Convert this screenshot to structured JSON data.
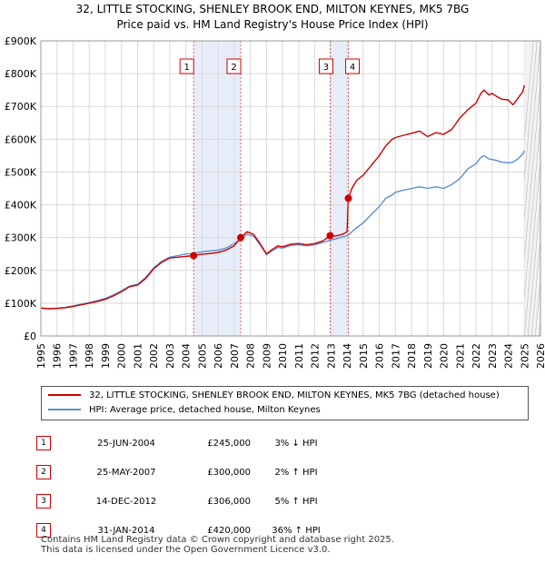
{
  "title_line1": "32, LITTLE STOCKING, SHENLEY BROOK END, MILTON KEYNES, MK5 7BG",
  "title_line2": "Price paid vs. HM Land Registry's House Price Index (HPI)",
  "chart_data": {
    "type": "line",
    "xlim": [
      1995,
      2026
    ],
    "ylim": [
      0,
      900000
    ],
    "y_ticks": [
      0,
      100000,
      200000,
      300000,
      400000,
      500000,
      600000,
      700000,
      800000,
      900000
    ],
    "y_tick_labels": [
      "£0",
      "£100K",
      "£200K",
      "£300K",
      "£400K",
      "£500K",
      "£600K",
      "£700K",
      "£800K",
      "£900K"
    ],
    "x_ticks": [
      1995,
      1996,
      1997,
      1998,
      1999,
      2000,
      2001,
      2002,
      2003,
      2004,
      2005,
      2006,
      2007,
      2008,
      2009,
      2010,
      2011,
      2012,
      2013,
      2014,
      2015,
      2016,
      2017,
      2018,
      2019,
      2020,
      2021,
      2022,
      2023,
      2024,
      2025,
      2026
    ],
    "x_tick_labels": [
      "1995",
      "1996",
      "1997",
      "1998",
      "1999",
      "2000",
      "2001",
      "2002",
      "2003",
      "2004",
      "2005",
      "2006",
      "2007",
      "2008",
      "2009",
      "2010",
      "2011",
      "2012",
      "2013",
      "2014",
      "2015",
      "2016",
      "2017",
      "2018",
      "2019",
      "2020",
      "2021",
      "2022",
      "2023",
      "2024",
      "2025",
      "2026"
    ],
    "grid": true,
    "forecast_from": 2025.0,
    "shaded_ranges": [
      [
        2004.48,
        2007.4
      ],
      [
        2012.95,
        2014.08
      ]
    ],
    "series": [
      {
        "name": "32, LITTLE STOCKING, SHENLEY BROOK END, MILTON KEYNES, MK5 7BG (detached house)",
        "color": "#cc0000",
        "x": [
          1995.0,
          1995.5,
          1996.0,
          1996.5,
          1997.0,
          1997.5,
          1998.0,
          1998.5,
          1999.0,
          1999.5,
          2000.0,
          2000.5,
          2001.0,
          2001.5,
          2002.0,
          2002.5,
          2003.0,
          2003.5,
          2004.0,
          2004.48,
          2004.8,
          2005.2,
          2005.6,
          2006.0,
          2006.5,
          2007.0,
          2007.4,
          2007.8,
          2008.2,
          2008.6,
          2009.0,
          2009.3,
          2009.7,
          2010.0,
          2010.5,
          2011.0,
          2011.5,
          2012.0,
          2012.5,
          2012.95,
          2013.3,
          2013.7,
          2014.0,
          2014.08,
          2014.3,
          2014.6,
          2015.0,
          2015.5,
          2016.0,
          2016.4,
          2016.8,
          2017.0,
          2017.5,
          2018.0,
          2018.5,
          2019.0,
          2019.5,
          2020.0,
          2020.5,
          2021.0,
          2021.5,
          2022.0,
          2022.3,
          2022.5,
          2022.8,
          2023.0,
          2023.3,
          2023.6,
          2024.0,
          2024.3,
          2024.6,
          2024.9,
          2025.0
        ],
        "y": [
          85000,
          83000,
          84000,
          86000,
          90000,
          95000,
          100000,
          105000,
          112000,
          122000,
          135000,
          150000,
          155000,
          175000,
          205000,
          225000,
          238000,
          240000,
          243000,
          245000,
          248000,
          250000,
          252000,
          255000,
          262000,
          275000,
          300000,
          318000,
          310000,
          282000,
          250000,
          262000,
          275000,
          272000,
          280000,
          282000,
          278000,
          282000,
          290000,
          306000,
          305000,
          310000,
          318000,
          420000,
          450000,
          475000,
          490000,
          520000,
          550000,
          580000,
          600000,
          605000,
          612000,
          618000,
          625000,
          608000,
          620000,
          615000,
          630000,
          665000,
          690000,
          710000,
          740000,
          750000,
          735000,
          740000,
          730000,
          722000,
          720000,
          705000,
          725000,
          745000,
          765000
        ]
      },
      {
        "name": "HPI: Average price, detached house, Milton Keynes",
        "color": "#5b8fd1",
        "x": [
          1995.0,
          1995.5,
          1996.0,
          1996.5,
          1997.0,
          1997.5,
          1998.0,
          1998.5,
          1999.0,
          1999.5,
          2000.0,
          2000.5,
          2001.0,
          2001.5,
          2002.0,
          2002.5,
          2003.0,
          2003.5,
          2004.0,
          2004.48,
          2004.8,
          2005.2,
          2005.6,
          2006.0,
          2006.5,
          2007.0,
          2007.4,
          2007.8,
          2008.2,
          2008.6,
          2009.0,
          2009.3,
          2009.7,
          2010.0,
          2010.5,
          2011.0,
          2011.5,
          2012.0,
          2012.5,
          2012.95,
          2013.3,
          2013.7,
          2014.0,
          2014.08,
          2014.3,
          2014.6,
          2015.0,
          2015.5,
          2016.0,
          2016.4,
          2016.8,
          2017.0,
          2017.5,
          2018.0,
          2018.5,
          2019.0,
          2019.5,
          2020.0,
          2020.5,
          2021.0,
          2021.5,
          2022.0,
          2022.3,
          2022.5,
          2022.8,
          2023.0,
          2023.3,
          2023.6,
          2024.0,
          2024.3,
          2024.6,
          2024.9,
          2025.0
        ],
        "y": [
          85000,
          84000,
          85000,
          87000,
          92000,
          97000,
          102000,
          108000,
          115000,
          125000,
          138000,
          152000,
          158000,
          178000,
          208000,
          228000,
          240000,
          245000,
          250000,
          252000,
          255000,
          258000,
          260000,
          262000,
          268000,
          282000,
          295000,
          310000,
          305000,
          278000,
          248000,
          258000,
          270000,
          268000,
          276000,
          278000,
          275000,
          278000,
          285000,
          292000,
          296000,
          302000,
          306000,
          308000,
          318000,
          330000,
          345000,
          370000,
          395000,
          420000,
          430000,
          438000,
          445000,
          450000,
          455000,
          450000,
          455000,
          450000,
          462000,
          480000,
          510000,
          525000,
          545000,
          550000,
          540000,
          538000,
          535000,
          530000,
          528000,
          530000,
          540000,
          555000,
          565000
        ]
      }
    ],
    "markers": [
      {
        "label": "1",
        "x": 2004.48,
        "y": 245000
      },
      {
        "label": "2",
        "x": 2007.4,
        "y": 300000
      },
      {
        "label": "3",
        "x": 2012.95,
        "y": 306000
      },
      {
        "label": "4",
        "x": 2014.08,
        "y": 420000
      }
    ]
  },
  "legend": {
    "property_label": "32, LITTLE STOCKING, SHENLEY BROOK END, MILTON KEYNES, MK5 7BG (detached house)",
    "hpi_label": "HPI: Average price, detached house, Milton Keynes",
    "property_color": "#cc0000",
    "hpi_color": "#5b8fd1"
  },
  "transactions": [
    {
      "num": "1",
      "date": "25-JUN-2004",
      "price": "£245,000",
      "hpi": "3% ↓ HPI"
    },
    {
      "num": "2",
      "date": "25-MAY-2007",
      "price": "£300,000",
      "hpi": "2% ↑ HPI"
    },
    {
      "num": "3",
      "date": "14-DEC-2012",
      "price": "£306,000",
      "hpi": "5% ↑ HPI"
    },
    {
      "num": "4",
      "date": "31-JAN-2014",
      "price": "£420,000",
      "hpi": "36% ↑ HPI"
    }
  ],
  "footer_line1": "Contains HM Land Registry data © Crown copyright and database right 2025.",
  "footer_line2": "This data is licensed under the Open Government Licence v3.0."
}
